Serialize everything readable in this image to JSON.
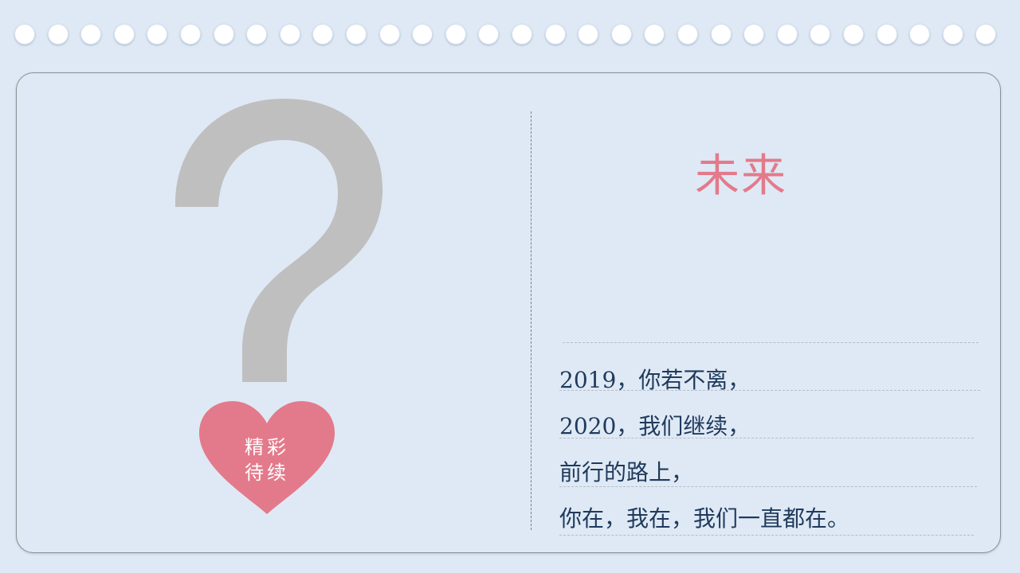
{
  "title": "未来",
  "heart": {
    "line1": "精彩",
    "line2": "待续"
  },
  "lines": [
    "2019，你若不离，",
    "2020，我们继续，",
    "前行的路上，",
    "你在，我在，我们一直都在。"
  ],
  "colors": {
    "background": "#dfe9f5",
    "accent_pink": "#e37a8b",
    "question_mark_gray": "#bfbfbf",
    "text_navy": "#1f3a5c"
  },
  "icons": {
    "question_mark": "question-mark-icon",
    "heart": "heart-icon"
  }
}
